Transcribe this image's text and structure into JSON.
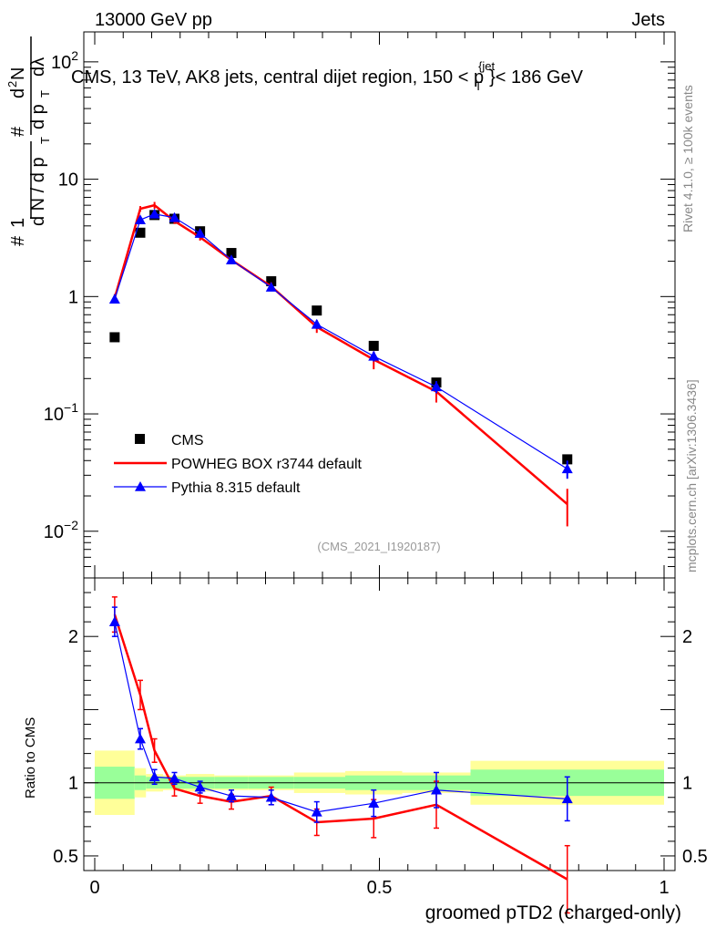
{
  "header": {
    "left": "13000 GeV pp",
    "right": "Jets"
  },
  "side": {
    "rivet": "Rivet 4.1.0, ≥ 100k events",
    "mcplots": "mcplots.cern.ch [arXiv:1306.3436]"
  },
  "watermark": "(CMS_2021_I1920187)",
  "top_ylabel": "#frac{1}{dN/dp_T} #frac{d^2N}{dp_T dλ}",
  "chart_data": {
    "type": "line",
    "title": "CMS, 13 TeV, AK8 jets, central dijet region, 150 < p_T^{jet} < 186 GeV",
    "xlabel": "groomed pTD2 (charged-only)",
    "ylabel": "1/(dN/dp_T) d²N/(dp_T dλ)",
    "ratio_ylabel": "Ratio to CMS",
    "xlim": [
      0,
      1
    ],
    "ylim": [
      0.004,
      180
    ],
    "yscale": "log",
    "ratio_ylim": [
      0.4,
      2.4
    ],
    "x_ticks": [
      "0",
      "0.5",
      "1"
    ],
    "y_ticks": [
      "10^-2",
      "10^-1",
      "1",
      "10",
      "10^2"
    ],
    "ratio_ticks": [
      "0.5",
      "1",
      "2"
    ],
    "x": [
      0.035,
      0.08,
      0.105,
      0.14,
      0.185,
      0.24,
      0.31,
      0.39,
      0.49,
      0.6,
      0.83
    ],
    "bin_edges": [
      0.0,
      0.07,
      0.09,
      0.12,
      0.16,
      0.21,
      0.27,
      0.35,
      0.44,
      0.54,
      0.66,
      1.0
    ],
    "series": [
      {
        "name": "CMS",
        "color": "#000000",
        "marker": "square",
        "values": [
          0.45,
          3.5,
          4.95,
          4.6,
          3.6,
          2.35,
          1.35,
          0.76,
          0.38,
          0.185,
          0.041
        ],
        "stat_band": [
          0.11,
          0.05,
          0.04,
          0.04,
          0.04,
          0.04,
          0.04,
          0.04,
          0.05,
          0.05,
          0.09
        ],
        "total_band": [
          0.22,
          0.1,
          0.06,
          0.05,
          0.06,
          0.05,
          0.05,
          0.07,
          0.08,
          0.07,
          0.15
        ]
      },
      {
        "name": "POWHEG BOX r3744 default",
        "color": "#ff0000",
        "marker": "none",
        "values": [
          0.97,
          5.6,
          6.0,
          4.4,
          3.2,
          2.05,
          1.22,
          0.55,
          0.29,
          0.155,
          0.017
        ],
        "errors": [
          0.08,
          0.3,
          0.4,
          0.25,
          0.2,
          0.15,
          0.1,
          0.06,
          0.05,
          0.03,
          0.006
        ],
        "ratio": [
          2.15,
          1.6,
          1.22,
          0.96,
          0.91,
          0.87,
          0.91,
          0.73,
          0.755,
          0.85,
          0.34
        ],
        "ratio_err": [
          0.12,
          0.1,
          0.08,
          0.05,
          0.05,
          0.05,
          0.06,
          0.09,
          0.13,
          0.16,
          0.23
        ]
      },
      {
        "name": "Pythia 8.315 default",
        "color": "#0000ff",
        "marker": "triangle",
        "values": [
          0.95,
          4.5,
          5.05,
          4.7,
          3.45,
          2.05,
          1.2,
          0.58,
          0.31,
          0.17,
          0.034
        ],
        "errors": [
          0.05,
          0.2,
          0.25,
          0.2,
          0.15,
          0.1,
          0.06,
          0.05,
          0.03,
          0.02,
          0.006
        ],
        "ratio": [
          2.1,
          1.3,
          1.04,
          1.03,
          0.97,
          0.91,
          0.9,
          0.8,
          0.86,
          0.95,
          0.89
        ],
        "ratio_err": [
          0.1,
          0.07,
          0.05,
          0.04,
          0.04,
          0.04,
          0.05,
          0.07,
          0.09,
          0.12,
          0.15
        ]
      }
    ],
    "legend_position": "bottom-left"
  }
}
